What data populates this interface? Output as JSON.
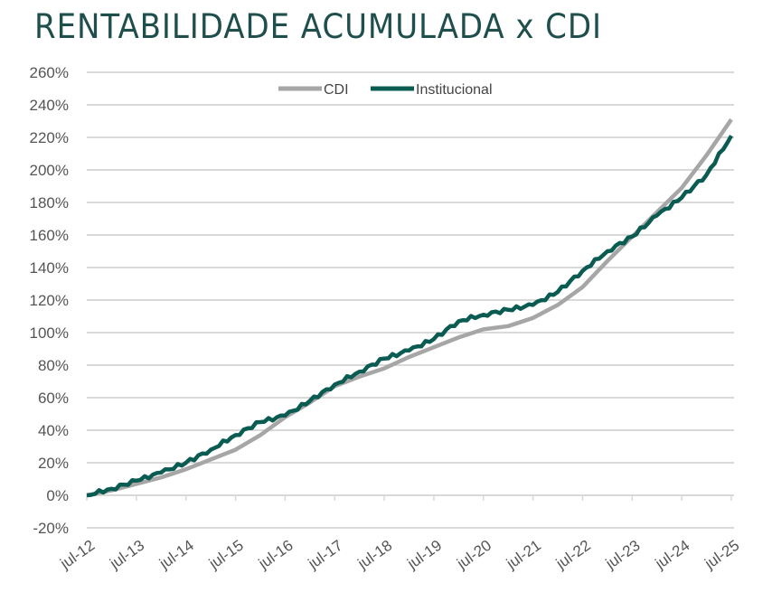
{
  "chart_data": {
    "type": "line",
    "title": "RENTABILIDADE ACUMULADA x CDI",
    "xlabel": "",
    "ylabel": "",
    "ylim": [
      -20,
      260
    ],
    "yticks": [
      "-20%",
      "0%",
      "20%",
      "40%",
      "60%",
      "80%",
      "100%",
      "120%",
      "140%",
      "160%",
      "180%",
      "200%",
      "220%",
      "240%",
      "260%"
    ],
    "yticks_values": [
      -20,
      0,
      20,
      40,
      60,
      80,
      100,
      120,
      140,
      160,
      180,
      200,
      220,
      240,
      260
    ],
    "xticks": [
      "jul-12",
      "jul-13",
      "jul-14",
      "jul-15",
      "jul-16",
      "jul-17",
      "jul-18",
      "jul-19",
      "jul-20",
      "jul-21",
      "jul-22",
      "jul-23",
      "jul-24",
      "jul-25"
    ],
    "x_years_from_jul12": [
      0,
      0.5,
      1,
      1.5,
      2,
      2.5,
      3,
      3.5,
      4,
      4.5,
      5,
      5.5,
      6,
      6.5,
      7,
      7.5,
      8,
      8.5,
      9,
      9.5,
      10,
      10.5,
      11,
      11.5,
      12,
      12.5,
      13
    ],
    "grid": true,
    "legend_position": "top-center",
    "series": [
      {
        "name": "CDI",
        "color": "#a6a6a6",
        "values": [
          0,
          3,
          7,
          11,
          16,
          22,
          28,
          37,
          48,
          57,
          67,
          73,
          78,
          85,
          91,
          97,
          102,
          104,
          109,
          117,
          128,
          144,
          159,
          174,
          189,
          209,
          231
        ]
      },
      {
        "name": "Institucional",
        "color": "#0a5c52",
        "values": [
          0,
          4,
          9,
          14,
          20,
          28,
          37,
          45,
          49,
          58,
          68,
          76,
          84,
          89,
          96,
          107,
          111,
          114,
          117,
          125,
          138,
          150,
          159,
          172,
          183,
          197,
          221
        ]
      }
    ]
  }
}
